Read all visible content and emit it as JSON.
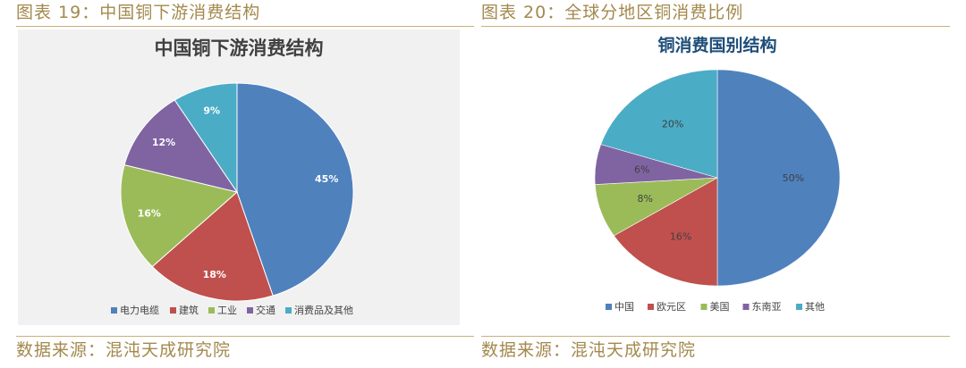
{
  "captions": {
    "left": "图表 19：中国铜下游消费结构",
    "right": "图表 20：全球分地区铜消费比例"
  },
  "sources": {
    "left": "数据来源：混沌天成研究院",
    "right": "数据来源：混沌天成研究院"
  },
  "chart_data": [
    {
      "type": "pie",
      "title": "中国铜下游消费结构",
      "categories": [
        "电力电缆",
        "建筑",
        "工业",
        "交通",
        "消费品及其他"
      ],
      "values": [
        45,
        18,
        16,
        12,
        9
      ],
      "labels": [
        "45%",
        "18%",
        "16%",
        "12%",
        "9%"
      ],
      "colors": [
        "#4f81bd",
        "#c0504d",
        "#9bbb59",
        "#8064a2",
        "#4bacc6"
      ],
      "legend_position": "bottom"
    },
    {
      "type": "pie",
      "title": "铜消费国别结构",
      "categories": [
        "中国",
        "欧元区",
        "美国",
        "东南亚",
        "其他"
      ],
      "values": [
        50,
        16,
        8,
        6,
        20
      ],
      "labels": [
        "50%",
        "16%",
        "8%",
        "6%",
        "20%"
      ],
      "colors": [
        "#4f81bd",
        "#c0504d",
        "#9bbb59",
        "#8064a2",
        "#4bacc6"
      ],
      "legend_position": "bottom"
    }
  ]
}
